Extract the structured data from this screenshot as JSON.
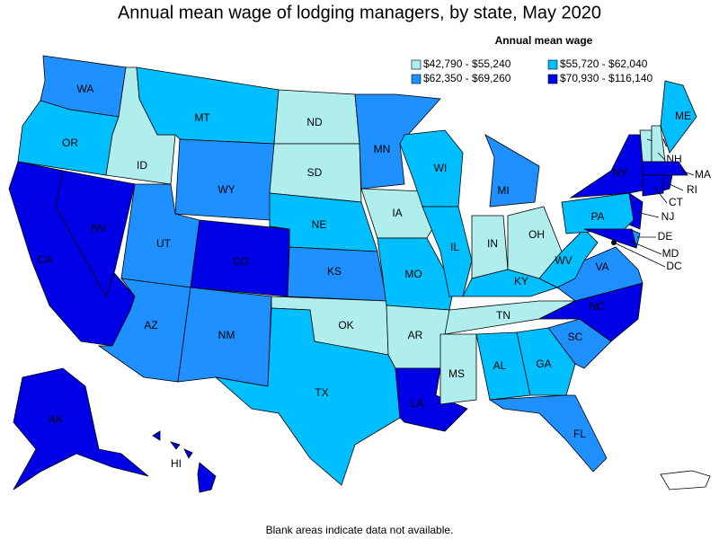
{
  "title": "Annual mean wage of lodging managers, by state, May 2020",
  "legend": {
    "title": "Annual mean wage",
    "items": [
      {
        "label": "$42,790 - $55,240",
        "color": "#b0eeee"
      },
      {
        "label": "$55,720 - $62,040",
        "color": "#00bfff"
      },
      {
        "label": "$62,350 - $69,260",
        "color": "#1e90ff"
      },
      {
        "label": "$70,930 - $116,140",
        "color": "#0000e6"
      }
    ]
  },
  "states": [
    {
      "abbr": "WA",
      "class": 2
    },
    {
      "abbr": "OR",
      "class": 1
    },
    {
      "abbr": "CA",
      "class": 3
    },
    {
      "abbr": "NV",
      "class": 3
    },
    {
      "abbr": "ID",
      "class": 0
    },
    {
      "abbr": "MT",
      "class": 1
    },
    {
      "abbr": "WY",
      "class": 2
    },
    {
      "abbr": "UT",
      "class": 2
    },
    {
      "abbr": "CO",
      "class": 3
    },
    {
      "abbr": "AZ",
      "class": 2
    },
    {
      "abbr": "NM",
      "class": 2
    },
    {
      "abbr": "ND",
      "class": 0
    },
    {
      "abbr": "SD",
      "class": 0
    },
    {
      "abbr": "NE",
      "class": 1
    },
    {
      "abbr": "KS",
      "class": 2
    },
    {
      "abbr": "OK",
      "class": 0
    },
    {
      "abbr": "TX",
      "class": 1
    },
    {
      "abbr": "MN",
      "class": 2
    },
    {
      "abbr": "IA",
      "class": 0
    },
    {
      "abbr": "MO",
      "class": 1
    },
    {
      "abbr": "AR",
      "class": 0
    },
    {
      "abbr": "LA",
      "class": 3
    },
    {
      "abbr": "WI",
      "class": 1
    },
    {
      "abbr": "IL",
      "class": 1
    },
    {
      "abbr": "MI",
      "class": 2
    },
    {
      "abbr": "IN",
      "class": 0
    },
    {
      "abbr": "OH",
      "class": 0
    },
    {
      "abbr": "KY",
      "class": 1
    },
    {
      "abbr": "TN",
      "class": 0
    },
    {
      "abbr": "MS",
      "class": 0
    },
    {
      "abbr": "AL",
      "class": 1
    },
    {
      "abbr": "GA",
      "class": 1
    },
    {
      "abbr": "FL",
      "class": 2
    },
    {
      "abbr": "SC",
      "class": 2
    },
    {
      "abbr": "NC",
      "class": 3
    },
    {
      "abbr": "VA",
      "class": 2
    },
    {
      "abbr": "WV",
      "class": 1
    },
    {
      "abbr": "PA",
      "class": 1
    },
    {
      "abbr": "NY",
      "class": 3
    },
    {
      "abbr": "NJ",
      "class": 3
    },
    {
      "abbr": "DE",
      "class": 2
    },
    {
      "abbr": "MD",
      "class": 3
    },
    {
      "abbr": "VT",
      "class": 0
    },
    {
      "abbr": "NH",
      "class": 0
    },
    {
      "abbr": "ME",
      "class": 1
    },
    {
      "abbr": "MA",
      "class": 3
    },
    {
      "abbr": "CT",
      "class": 3
    },
    {
      "abbr": "RI",
      "class": 3
    },
    {
      "abbr": "AK",
      "class": 3
    },
    {
      "abbr": "HI",
      "class": 3
    },
    {
      "abbr": "DC",
      "class": 3
    }
  ],
  "footnote": "Blank areas indicate data not available."
}
